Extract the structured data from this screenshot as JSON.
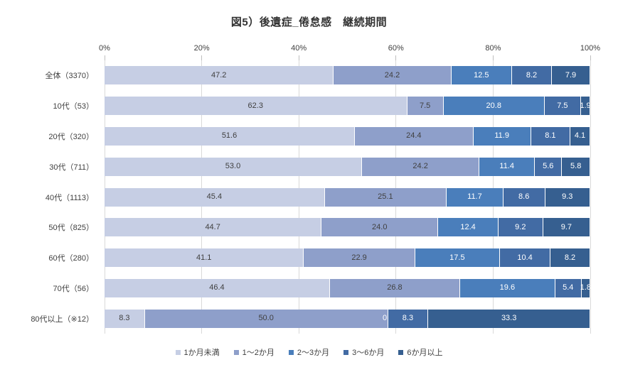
{
  "chart_data": {
    "type": "bar",
    "variant": "horizontal-stacked-100",
    "title": "図5）後遺症_倦怠感　継続期間",
    "x_axis": {
      "min": 0,
      "max": 100,
      "ticks": [
        "0%",
        "20%",
        "40%",
        "60%",
        "80%",
        "100%"
      ],
      "tick_values": [
        0,
        20,
        40,
        60,
        80,
        100
      ]
    },
    "gridlines": "vertical",
    "legend_position": "bottom",
    "series_names": [
      "1か月未満",
      "1～2か月",
      "2～3か月",
      "3～6か月",
      "6か月以上"
    ],
    "series_colors": [
      "#c6cee4",
      "#8e9fca",
      "#4a7ebb",
      "#426ba4",
      "#365f90"
    ],
    "value_label_colors": [
      "#404040",
      "#404040",
      "#ffffff",
      "#ffffff",
      "#ffffff"
    ],
    "categories": [
      "全体（3370）",
      "10代（53）",
      "20代（320）",
      "30代（711）",
      "40代（1113）",
      "50代（825）",
      "60代（280）",
      "70代（56）",
      "80代以上（※12）"
    ],
    "rows": [
      {
        "category": "全体（3370）",
        "values": [
          47.2,
          24.2,
          12.5,
          8.2,
          7.9
        ],
        "labels": [
          "47.2",
          "24.2",
          "12.5",
          "8.2",
          "7.9"
        ]
      },
      {
        "category": "10代（53）",
        "values": [
          62.3,
          7.5,
          20.8,
          7.5,
          1.9
        ],
        "labels": [
          "62.3",
          "7.5",
          "20.8",
          "7.5",
          "1.9"
        ]
      },
      {
        "category": "20代（320）",
        "values": [
          51.6,
          24.4,
          11.9,
          8.1,
          4.1
        ],
        "labels": [
          "51.6",
          "24.4",
          "11.9",
          "8.1",
          "4.1"
        ]
      },
      {
        "category": "30代（711）",
        "values": [
          53.0,
          24.2,
          11.4,
          5.6,
          5.8
        ],
        "labels": [
          "53.0",
          "24.2",
          "11.4",
          "5.6",
          "5.8"
        ]
      },
      {
        "category": "40代（1113）",
        "values": [
          45.4,
          25.1,
          11.7,
          8.6,
          9.3
        ],
        "labels": [
          "45.4",
          "25.1",
          "11.7",
          "8.6",
          "9.3"
        ]
      },
      {
        "category": "50代（825）",
        "values": [
          44.7,
          24.0,
          12.4,
          9.2,
          9.7
        ],
        "labels": [
          "44.7",
          "24.0",
          "12.4",
          "9.2",
          "9.7"
        ]
      },
      {
        "category": "60代（280）",
        "values": [
          41.1,
          22.9,
          17.5,
          10.4,
          8.2
        ],
        "labels": [
          "41.1",
          "22.9",
          "17.5",
          "10.4",
          "8.2"
        ]
      },
      {
        "category": "70代（56）",
        "values": [
          46.4,
          26.8,
          19.6,
          5.4,
          1.8
        ],
        "labels": [
          "46.4",
          "26.8",
          "19.6",
          "5.4",
          "1.8"
        ]
      },
      {
        "category": "80代以上（※12）",
        "values": [
          8.3,
          50.0,
          0.0,
          8.3,
          33.3
        ],
        "labels": [
          "8.3",
          "50.0",
          "0.0",
          "8.3",
          "33.3"
        ]
      }
    ],
    "colors": {
      "gridline": "#d9d9d9",
      "tick_mark": "#bfbfbf",
      "text": "#404040"
    }
  }
}
